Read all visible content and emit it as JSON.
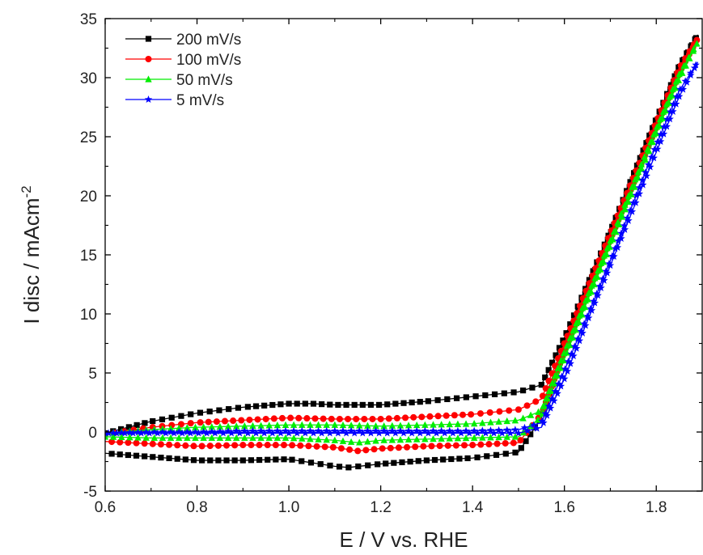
{
  "chart_data": {
    "type": "line",
    "xlabel": "E / V vs. RHE",
    "ylabel": "I disc / mAcm",
    "ylabel_superscript": "-2",
    "xlim": [
      0.6,
      1.9
    ],
    "ylim": [
      -5,
      35
    ],
    "x_ticks": [
      "0.6",
      "0.8",
      "1.0",
      "1.2",
      "1.4",
      "1.6",
      "1.8"
    ],
    "y_ticks": [
      "-5",
      "0",
      "5",
      "10",
      "15",
      "20",
      "25",
      "30",
      "35"
    ],
    "legend_position": "top-left",
    "series": [
      {
        "name": "200 mV/s",
        "color": "#000000",
        "marker": "square",
        "x": [
          0.6,
          0.7,
          0.8,
          0.9,
          1.0,
          1.05,
          1.1,
          1.2,
          1.3,
          1.4,
          1.5,
          1.55,
          1.6,
          1.65,
          1.7,
          1.75,
          1.8,
          1.85,
          1.89,
          1.85,
          1.8,
          1.75,
          1.7,
          1.65,
          1.6,
          1.55,
          1.5,
          1.4,
          1.3,
          1.2,
          1.13,
          1.1,
          1.0,
          0.9,
          0.8,
          0.7,
          0.6
        ],
        "y": [
          -0.1,
          0.9,
          1.6,
          2.1,
          2.4,
          2.4,
          2.3,
          2.3,
          2.6,
          3.0,
          3.4,
          4.0,
          8.0,
          12.5,
          17.0,
          21.8,
          26.5,
          31.0,
          33.6,
          30.8,
          26.2,
          21.5,
          16.8,
          12.2,
          7.0,
          1.2,
          -1.7,
          -2.2,
          -2.4,
          -2.7,
          -3.0,
          -2.9,
          -2.3,
          -2.4,
          -2.4,
          -2.1,
          -1.8
        ]
      },
      {
        "name": "100 mV/s",
        "color": "#ff0000",
        "marker": "circle",
        "x": [
          0.6,
          0.7,
          0.8,
          0.9,
          1.0,
          1.1,
          1.2,
          1.3,
          1.4,
          1.5,
          1.55,
          1.6,
          1.65,
          1.7,
          1.75,
          1.8,
          1.85,
          1.89,
          1.85,
          1.8,
          1.75,
          1.7,
          1.65,
          1.6,
          1.55,
          1.5,
          1.4,
          1.3,
          1.2,
          1.15,
          1.1,
          1.0,
          0.9,
          0.8,
          0.7,
          0.6
        ],
        "y": [
          -0.2,
          0.4,
          0.8,
          1.0,
          1.2,
          1.1,
          1.1,
          1.3,
          1.5,
          1.9,
          2.8,
          7.5,
          12.2,
          16.8,
          21.5,
          26.2,
          30.8,
          33.3,
          30.4,
          25.8,
          21.0,
          16.3,
          11.7,
          6.8,
          1.5,
          -0.9,
          -1.1,
          -1.2,
          -1.4,
          -1.6,
          -1.3,
          -1.1,
          -1.1,
          -1.2,
          -1.0,
          -0.8
        ]
      },
      {
        "name": "50 mV/s",
        "color": "#00ee00",
        "marker": "triangle",
        "x": [
          0.6,
          0.7,
          0.8,
          0.9,
          1.0,
          1.1,
          1.2,
          1.3,
          1.4,
          1.5,
          1.55,
          1.6,
          1.65,
          1.7,
          1.75,
          1.8,
          1.85,
          1.89,
          1.85,
          1.8,
          1.75,
          1.7,
          1.65,
          1.6,
          1.55,
          1.5,
          1.4,
          1.3,
          1.2,
          1.15,
          1.1,
          1.0,
          0.9,
          0.8,
          0.7,
          0.6
        ],
        "y": [
          -0.1,
          0.2,
          0.4,
          0.5,
          0.6,
          0.6,
          0.5,
          0.6,
          0.7,
          1.0,
          1.8,
          6.8,
          11.5,
          16.2,
          21.0,
          25.7,
          30.3,
          33.0,
          29.9,
          25.3,
          20.5,
          15.8,
          11.1,
          6.2,
          1.3,
          -0.4,
          -0.5,
          -0.6,
          -0.7,
          -0.9,
          -0.7,
          -0.5,
          -0.5,
          -0.5,
          -0.5,
          -0.4
        ]
      },
      {
        "name": "5 mV/s",
        "color": "#0000ff",
        "marker": "star",
        "x": [
          0.6,
          0.7,
          0.8,
          0.9,
          1.0,
          1.1,
          1.2,
          1.3,
          1.4,
          1.5,
          1.55,
          1.6,
          1.65,
          1.7,
          1.75,
          1.8,
          1.85,
          1.89,
          1.85,
          1.8,
          1.75,
          1.7,
          1.65,
          1.6,
          1.55,
          1.5,
          1.4,
          1.3,
          1.2,
          1.1,
          1.0,
          0.9,
          0.8,
          0.7,
          0.6
        ],
        "y": [
          -0.1,
          0.0,
          0.0,
          0.1,
          0.1,
          0.1,
          0.1,
          0.1,
          0.1,
          0.2,
          0.8,
          5.2,
          9.8,
          14.5,
          19.4,
          24.3,
          28.9,
          31.3,
          28.4,
          23.7,
          18.9,
          14.1,
          9.4,
          4.5,
          0.4,
          -0.1,
          -0.1,
          -0.1,
          -0.1,
          -0.1,
          -0.1,
          -0.1,
          -0.1,
          -0.1,
          -0.1
        ]
      }
    ]
  }
}
